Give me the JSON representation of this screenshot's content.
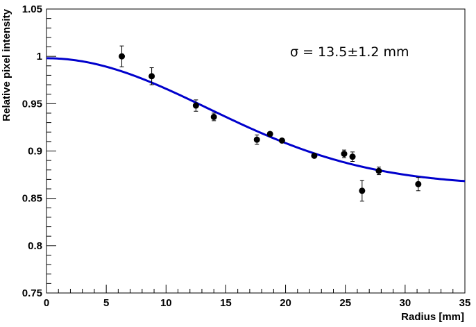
{
  "chart_data": {
    "type": "scatter",
    "title": "",
    "xlabel": "Radius [mm]",
    "ylabel": "Relative pixel intensity",
    "xlim": [
      0,
      35
    ],
    "ylim": [
      0.75,
      1.05
    ],
    "x_ticks": [
      "0",
      "5",
      "10",
      "15",
      "20",
      "25",
      "30",
      "35"
    ],
    "y_ticks": [
      "0.75",
      "0.8",
      "0.85",
      "0.9",
      "0.95",
      "1",
      "1.05"
    ],
    "grid": false,
    "legend": "none",
    "annotation": "σ = 13.5±1.2 mm",
    "points": [
      {
        "x": 6.3,
        "y": 1.0,
        "err": 0.011
      },
      {
        "x": 8.8,
        "y": 0.979,
        "err": 0.009
      },
      {
        "x": 12.5,
        "y": 0.948,
        "err": 0.006
      },
      {
        "x": 14.0,
        "y": 0.936,
        "err": 0.004
      },
      {
        "x": 17.6,
        "y": 0.912,
        "err": 0.005
      },
      {
        "x": 18.7,
        "y": 0.918,
        "err": 0.002
      },
      {
        "x": 19.7,
        "y": 0.911,
        "err": 0.002
      },
      {
        "x": 22.4,
        "y": 0.895,
        "err": 0.002
      },
      {
        "x": 24.9,
        "y": 0.897,
        "err": 0.004
      },
      {
        "x": 25.6,
        "y": 0.894,
        "err": 0.005
      },
      {
        "x": 26.4,
        "y": 0.858,
        "err": 0.011
      },
      {
        "x": 27.8,
        "y": 0.879,
        "err": 0.004
      },
      {
        "x": 31.1,
        "y": 0.865,
        "err": 0.007
      }
    ],
    "fit": {
      "name": "Gaussian fit",
      "color": "#0000cc",
      "sigma": 13.5,
      "amplitude": 0.1345,
      "offset": 0.8635
    },
    "marker_color": "#000000"
  }
}
